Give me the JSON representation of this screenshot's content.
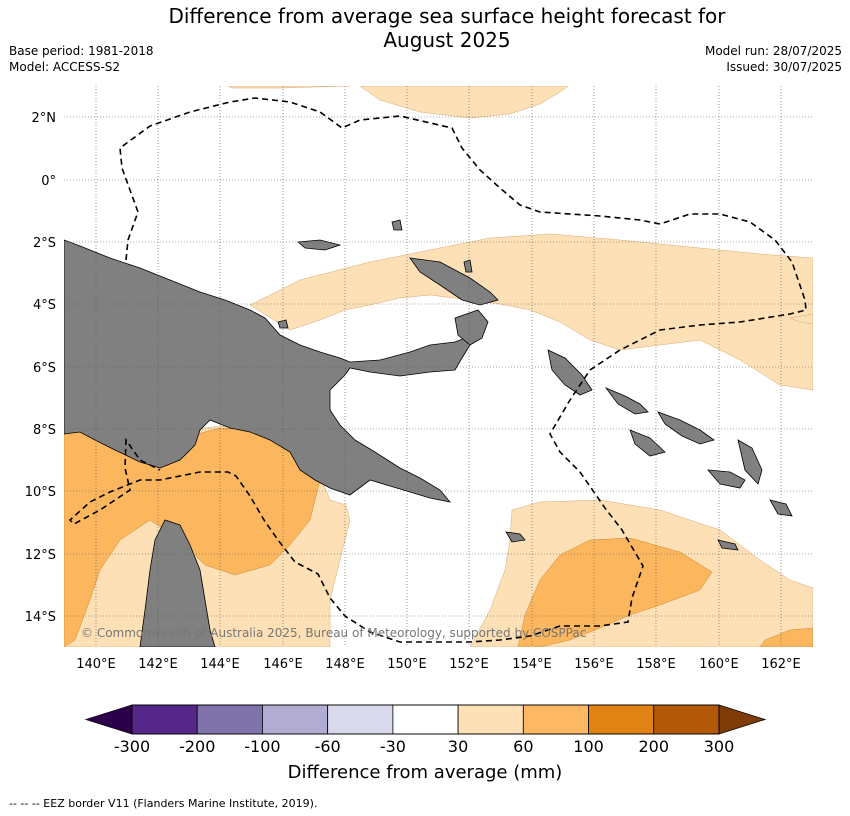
{
  "header": {
    "title_line1": "Difference from average sea surface height forecast for",
    "title_line2": "August 2025",
    "base_period": "Base period: 1981-2018",
    "model": "Model: ACCESS-S2",
    "model_run": "Model run: 28/07/2025",
    "issued": "Issued: 30/07/2025"
  },
  "map": {
    "lat_labels": [
      "2°N",
      "0°",
      "2°S",
      "4°S",
      "6°S",
      "8°S",
      "10°S",
      "12°S",
      "14°S"
    ],
    "lon_labels": [
      "140°E",
      "142°E",
      "144°E",
      "146°E",
      "148°E",
      "150°E",
      "152°E",
      "154°E",
      "156°E",
      "158°E",
      "160°E",
      "162°E"
    ],
    "copyright": "© Commonwealth of Australia 2025, Bureau of Meteorology, supported by COSPPac",
    "colors": {
      "land": "#808080",
      "anomaly_30_60": "#fde0b5",
      "anomaly_60_100": "#fbb65e",
      "eez_line": "#000000"
    }
  },
  "colorbar": {
    "title": "Difference from average (mm)",
    "tick_labels": [
      "-300",
      "-200",
      "-100",
      "-60",
      "-30",
      "30",
      "60",
      "100",
      "200",
      "300"
    ],
    "colors": [
      "#2d004b",
      "#542788",
      "#8073ac",
      "#b2abd2",
      "#d8daeb",
      "#ffffff",
      "#fee0b6",
      "#fdb863",
      "#e08214",
      "#b35806",
      "#7f3b08"
    ]
  },
  "footer": {
    "eez_note": "--  --  -- EEZ border V11 (Flanders Marine Institute, 2019)."
  }
}
